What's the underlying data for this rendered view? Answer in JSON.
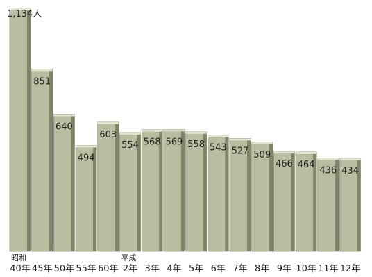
{
  "chart_data": {
    "type": "bar",
    "categories": [
      "40年",
      "45年",
      "50年",
      "55年",
      "60年",
      "2年",
      "3年",
      "4年",
      "5年",
      "6年",
      "7年",
      "8年",
      "9年",
      "10年",
      "11年",
      "12年"
    ],
    "era_labels": [
      {
        "index": 0,
        "text": "昭和"
      },
      {
        "index": 5,
        "text": "平成"
      }
    ],
    "values": [
      1134,
      851,
      640,
      494,
      603,
      554,
      568,
      569,
      558,
      543,
      527,
      509,
      466,
      464,
      436,
      434
    ],
    "value_labels": [
      "1,134人",
      "851",
      "640",
      "494",
      "603",
      "554",
      "568",
      "569",
      "558",
      "543",
      "527",
      "509",
      "466",
      "464",
      "436",
      "434"
    ],
    "ylim": [
      0,
      1134
    ],
    "grid": false,
    "colors": {
      "bar_face": "#b9bea0",
      "bar_top": "#e2e5d0",
      "bar_side": "#7f8566",
      "bar_edge": "#6e7358"
    }
  }
}
